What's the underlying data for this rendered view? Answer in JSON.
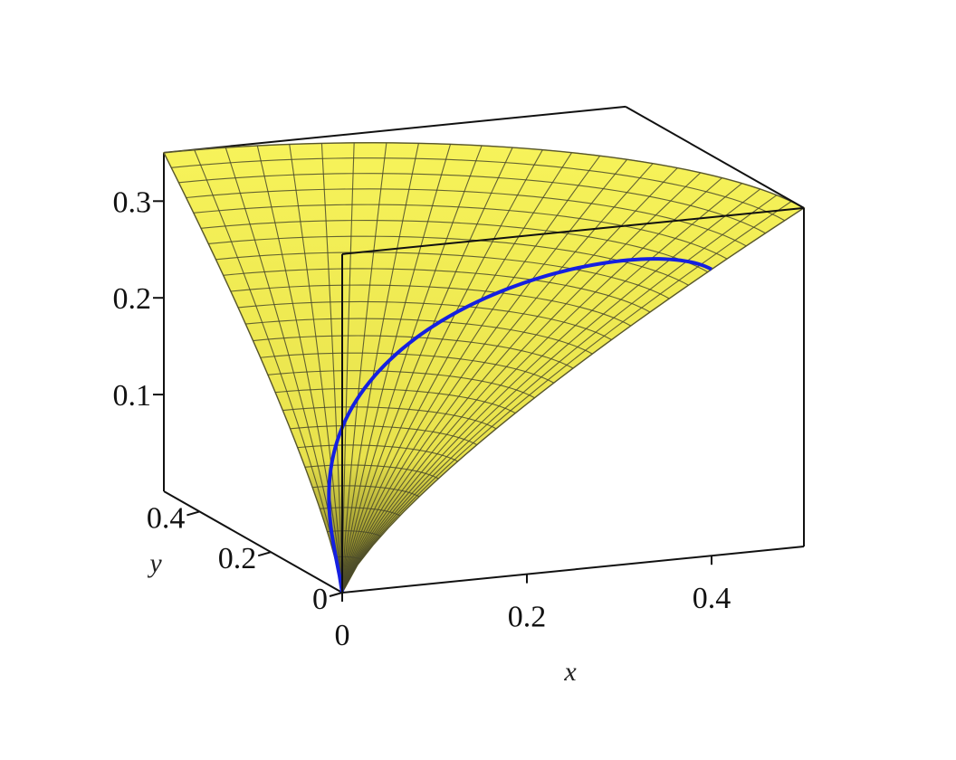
{
  "colors": {
    "surface_light": "#f7f35a",
    "surface_dark": "#6e6a1e",
    "mesh": "#4a4a2a",
    "curve": "#1520e0",
    "box": "#111111"
  },
  "chart_data": {
    "type": "surface3d",
    "title": "",
    "xlabel": "x",
    "ylabel": "y",
    "zlabel": "",
    "xlim": [
      0,
      0.5
    ],
    "ylim": [
      0,
      0.5
    ],
    "zlim": [
      0,
      0.35
    ],
    "x_ticks": [
      {
        "value": 0,
        "label": "0"
      },
      {
        "value": 0.2,
        "label": "0.2"
      },
      {
        "value": 0.4,
        "label": "0.4"
      }
    ],
    "y_ticks": [
      {
        "value": 0,
        "label": "0"
      },
      {
        "value": 0.2,
        "label": "0.2"
      },
      {
        "value": 0.4,
        "label": "0.4"
      }
    ],
    "z_ticks": [
      {
        "value": 0.1,
        "label": "0.1"
      },
      {
        "value": 0.2,
        "label": "0.2"
      },
      {
        "value": 0.3,
        "label": "0.3"
      }
    ],
    "grid": false,
    "legend": "none",
    "surface": {
      "description_domain": "quarter disk in the x-y plane",
      "radius_max": 0.5,
      "height_max": 0.35
    },
    "curve": {
      "shape": "semicircle",
      "center": [
        0.2,
        0
      ],
      "radius": 0.2
    }
  }
}
